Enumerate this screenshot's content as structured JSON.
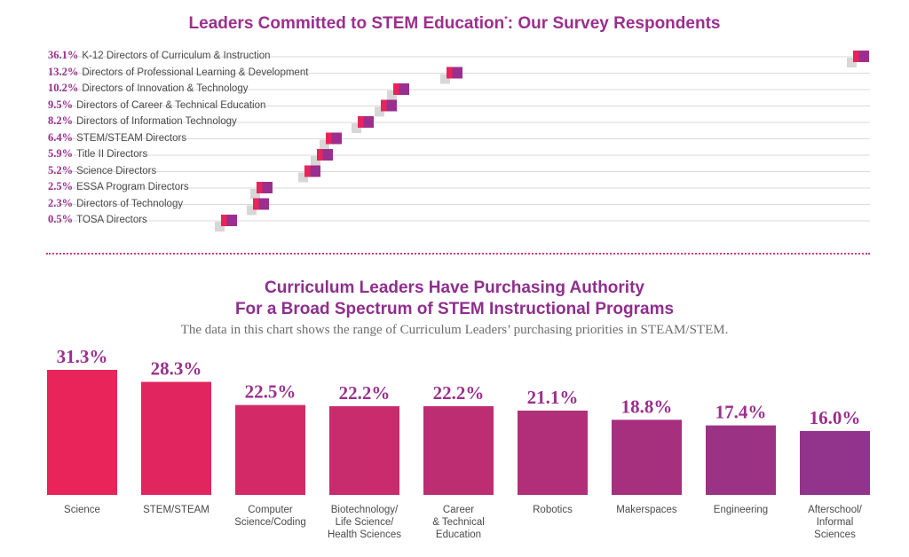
{
  "top_chart": {
    "title": "Leaders Committed to STEM Education",
    "title_mark": "*",
    "title_suffix": ": Our Survey Respondents"
  },
  "bottom_chart": {
    "title_line1": "Curriculum Leaders Have Purchasing Authority",
    "title_line2": "For a Broad Spectrum of STEM Instructional Programs",
    "subtitle": "The data in this chart shows the range of Curriculum Leaders’ purchasing priorities in STEAM/STEM."
  },
  "colors": {
    "accent_purple": "#9b2f8e",
    "accent_pink": "#e8245a",
    "gridline": "#d9d9d9",
    "marker_shadow": "#d7d7d7",
    "divider": "#d63b7a"
  },
  "chart_data": [
    {
      "type": "scatter",
      "title": "Leaders Committed to STEM Education*: Our Survey Respondents",
      "xlim": [
        0,
        36.1
      ],
      "categories": [
        "K-12 Directors of Curriculum & Instruction",
        "Directors of Professional Learning & Development",
        "Directors of Innovation & Technology",
        "Directors of Career & Technical Education",
        "Directors of Information Technology",
        "STEM/STEAM Directors",
        "Title II Directors",
        "Science Directors",
        "ESSA Program Directors",
        "Directors of Technology",
        "TOSA Directors"
      ],
      "values": [
        36.1,
        13.2,
        10.2,
        9.5,
        8.2,
        6.4,
        5.9,
        5.2,
        2.5,
        2.3,
        0.5
      ],
      "value_labels": [
        "36.1%",
        "13.2%",
        "10.2%",
        "9.5%",
        "8.2%",
        "6.4%",
        "5.9%",
        "5.2%",
        "2.5%",
        "2.3%",
        "0.5%"
      ],
      "grid": true
    },
    {
      "type": "bar",
      "title": "Curriculum Leaders Have Purchasing Authority For a Broad Spectrum of STEM Instructional Programs",
      "categories": [
        "Science",
        "STEM/STEAM",
        "Computer\nScience/Coding",
        "Biotechnology/\nLife Science/\nHealth Sciences",
        "Career\n& Technical\nEducation",
        "Robotics",
        "Makerspaces",
        "Engineering",
        "Afterschool/\nInformal\nSciences"
      ],
      "values": [
        31.3,
        28.3,
        22.5,
        22.2,
        22.2,
        21.1,
        18.8,
        17.4,
        16.0
      ],
      "value_labels": [
        "31.3%",
        "28.3%",
        "22.5%",
        "22.2%",
        "22.2%",
        "21.1%",
        "18.8%",
        "17.4%",
        "16.0%"
      ],
      "colors": [
        "#e8245a",
        "#e1265f",
        "#d32a67",
        "#c82c6c",
        "#bd2d72",
        "#b12f78",
        "#a6307e",
        "#9c3284",
        "#92348b"
      ],
      "ylim": [
        0,
        31.3
      ]
    }
  ]
}
